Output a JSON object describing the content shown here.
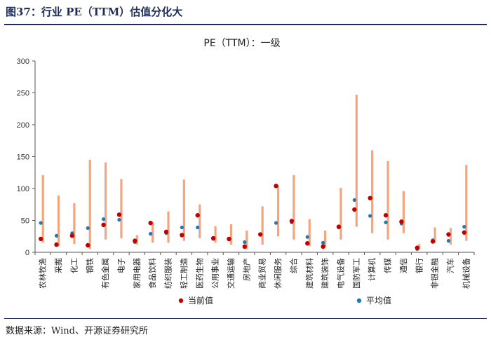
{
  "figure": {
    "title": "图37：行业 PE（TTM）估值分化大",
    "source": "数据来源：Wind、开源证券研究所"
  },
  "chart_data": {
    "type": "range-dot",
    "title": "PE（TTM）：一级",
    "ylim": [
      0,
      300
    ],
    "yticks": [
      0,
      50,
      100,
      150,
      200,
      250,
      300
    ],
    "grid": false,
    "legend": "bottom",
    "colors": {
      "range": "#f4a57e",
      "current": "#c00000",
      "average": "#1f77b4"
    },
    "categories": [
      "农林牧渔",
      "采掘",
      "化工",
      "钢铁",
      "有色金属",
      "电子",
      "家用电器",
      "食品饮料",
      "纺织服装",
      "轻工制造",
      "医药生物",
      "公用事业",
      "交通运输",
      "房地产",
      "商业贸易",
      "休闲服务",
      "综合",
      "建筑材料",
      "建筑装饰",
      "电气设备",
      "国防军工",
      "计算机",
      "传媒",
      "通信",
      "银行",
      "非银金融",
      "汽车",
      "机械设备"
    ],
    "range_low": [
      15,
      10,
      13,
      5,
      20,
      22,
      12,
      15,
      15,
      18,
      22,
      15,
      12,
      5,
      12,
      25,
      20,
      10,
      8,
      20,
      40,
      30,
      20,
      30,
      4,
      15,
      12,
      18
    ],
    "range_high": [
      121,
      89,
      77,
      145,
      141,
      115,
      27,
      47,
      64,
      114,
      75,
      41,
      44,
      34,
      72,
      105,
      121,
      52,
      34,
      101,
      247,
      160,
      143,
      96,
      13,
      39,
      38,
      137
    ],
    "series": [
      {
        "name": "当前值",
        "values": [
          21,
          12,
          26,
          11,
          43,
          59,
          18,
          46,
          32,
          27,
          58,
          22,
          21,
          9,
          28,
          104,
          49,
          14,
          9,
          40,
          67,
          85,
          58,
          48,
          7,
          17,
          28,
          31
        ]
      },
      {
        "name": "平均值",
        "values": [
          46,
          26,
          30,
          38,
          52,
          51,
          16,
          29,
          30,
          39,
          39,
          21,
          20,
          16,
          28,
          46,
          47,
          24,
          15,
          39,
          82,
          57,
          47,
          45,
          5,
          19,
          18,
          40
        ]
      }
    ]
  }
}
